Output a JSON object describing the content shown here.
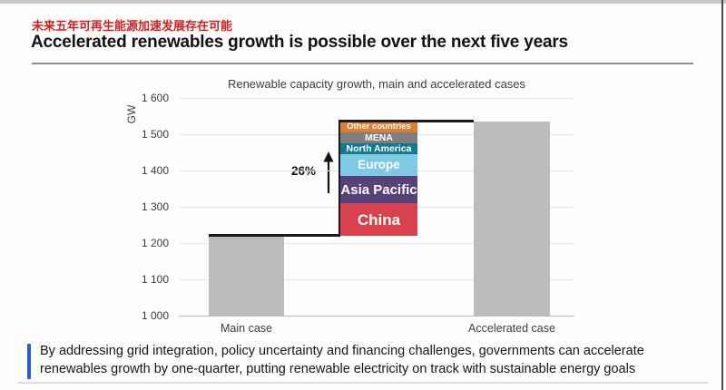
{
  "header": {
    "title_zh": "未来五年可再生能源加速发展存在可能",
    "title_en": "Accelerated renewables growth is possible over the next five years"
  },
  "chart_data": {
    "type": "bar",
    "title": "Renewable capacity growth, main and accelerated cases",
    "ylabel": "GW",
    "ylim": [
      1000,
      1600
    ],
    "grid": true,
    "legend": "none",
    "yticks": [
      {
        "value": 1000,
        "label": "1 000"
      },
      {
        "value": 1100,
        "label": "1 100"
      },
      {
        "value": 1200,
        "label": "1 200"
      },
      {
        "value": 1300,
        "label": "1 300"
      },
      {
        "value": 1400,
        "label": "1 400"
      },
      {
        "value": 1500,
        "label": "1 500"
      },
      {
        "value": 1600,
        "label": "1 600"
      }
    ],
    "categories": [
      "Main case",
      "Accelerated case"
    ],
    "bars": [
      {
        "category": "Main case",
        "value": 1220,
        "color": "#bcbcbc"
      },
      {
        "category": "Accelerated case",
        "value": 1535,
        "color": "#bcbcbc"
      }
    ],
    "stacked_growth_column": {
      "base": 1220,
      "top": 1535,
      "segments": [
        {
          "label": "China",
          "value": 90,
          "color": "#d8414d"
        },
        {
          "label": "Asia Pacific",
          "value": 75,
          "color": "#564279"
        },
        {
          "label": "Europe",
          "value": 60,
          "color": "#7ec9e4"
        },
        {
          "label": "North America",
          "value": 30,
          "color": "#15798c"
        },
        {
          "label": "MENA",
          "value": 30,
          "color": "#7e7e7e"
        },
        {
          "label": "Other countries",
          "value": 30,
          "color": "#de7e30"
        }
      ]
    },
    "annotation": {
      "label": "26%",
      "icon": "up-arrow"
    }
  },
  "footnote": {
    "lines": [
      "By addressing grid integration, policy uncertainty and financing challenges, governments can accelerate",
      "renewables growth by one-quarter, putting renewable electricity on track with sustainable energy goals"
    ],
    "accent_color": "#2e5bd7"
  },
  "colors": {
    "title_red": "#cf2020",
    "bar_gray": "#bcbcbc",
    "step_line": "#1a1a1a",
    "gridline": "#e4e4e4"
  }
}
